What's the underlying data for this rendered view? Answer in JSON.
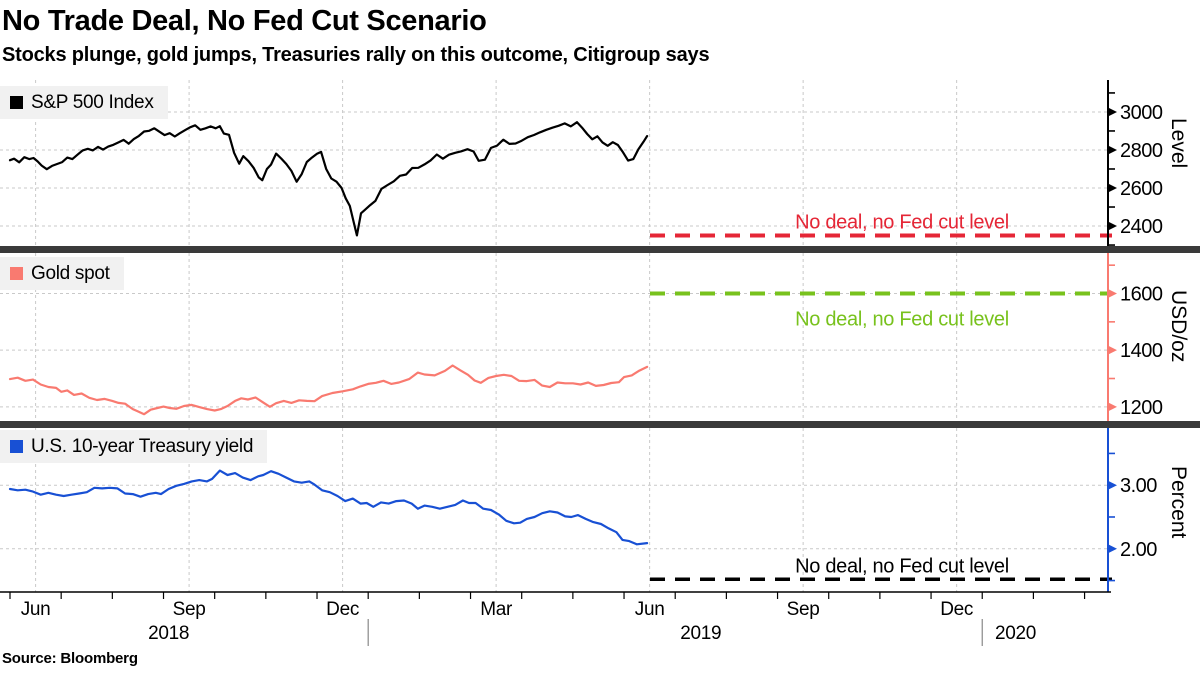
{
  "header": {
    "title": "No Trade Deal, No Fed Cut Scenario",
    "subtitle": "Stocks plunge, gold jumps, Treasuries rally on this outcome, Citigroup says"
  },
  "source": "Source: Bloomberg",
  "colors": {
    "sp500_line": "#000000",
    "gold_line": "#f97a70",
    "treasury_line": "#1850d4",
    "no_deal_sp500": "#e52636",
    "no_deal_gold": "#78c21d",
    "no_deal_treasury": "#000000",
    "gridline": "#c9c9c9",
    "panel_divider": "#3a3a3a",
    "legend_bg": "#f1f1f1"
  },
  "chart_data": [
    {
      "type": "line",
      "panel": "sp500",
      "legend": "S&P 500 Index",
      "line_color": "#000000",
      "axis_color": "#000000",
      "ylabel": "Level",
      "ylim": [
        2295,
        3168
      ],
      "yticks_major": [
        2400,
        2600,
        2800,
        3000
      ],
      "yticks_minor": [
        2300,
        2500,
        2700,
        2900,
        3100
      ],
      "tick_decimals": 0,
      "target_level": {
        "value": 2350,
        "label": "No deal, no Fed cut level",
        "color": "#e52636",
        "label_side": "above"
      },
      "points": [
        [
          0.0,
          2746
        ],
        [
          0.08,
          2754
        ],
        [
          0.18,
          2735
        ],
        [
          0.28,
          2762
        ],
        [
          0.38,
          2752
        ],
        [
          0.46,
          2758
        ],
        [
          0.54,
          2740
        ],
        [
          0.62,
          2718
        ],
        [
          0.72,
          2699
        ],
        [
          0.82,
          2716
        ],
        [
          0.92,
          2726
        ],
        [
          1.02,
          2736
        ],
        [
          1.12,
          2760
        ],
        [
          1.22,
          2752
        ],
        [
          1.32,
          2775
        ],
        [
          1.42,
          2798
        ],
        [
          1.52,
          2806
        ],
        [
          1.62,
          2798
        ],
        [
          1.72,
          2816
        ],
        [
          1.82,
          2802
        ],
        [
          1.92,
          2818
        ],
        [
          2.02,
          2827
        ],
        [
          2.12,
          2840
        ],
        [
          2.22,
          2853
        ],
        [
          2.32,
          2833
        ],
        [
          2.42,
          2857
        ],
        [
          2.52,
          2874
        ],
        [
          2.62,
          2897
        ],
        [
          2.72,
          2901
        ],
        [
          2.82,
          2914
        ],
        [
          2.92,
          2896
        ],
        [
          3.02,
          2878
        ],
        [
          3.12,
          2888
        ],
        [
          3.22,
          2871
        ],
        [
          3.32,
          2888
        ],
        [
          3.42,
          2904
        ],
        [
          3.52,
          2919
        ],
        [
          3.62,
          2930
        ],
        [
          3.72,
          2906
        ],
        [
          3.82,
          2914
        ],
        [
          3.92,
          2924
        ],
        [
          4.02,
          2914
        ],
        [
          4.1,
          2925
        ],
        [
          4.18,
          2886
        ],
        [
          4.28,
          2880
        ],
        [
          4.38,
          2785
        ],
        [
          4.48,
          2728
        ],
        [
          4.56,
          2768
        ],
        [
          4.66,
          2741
        ],
        [
          4.76,
          2706
        ],
        [
          4.86,
          2656
        ],
        [
          4.93,
          2641
        ],
        [
          5.02,
          2700
        ],
        [
          5.1,
          2723
        ],
        [
          5.2,
          2781
        ],
        [
          5.3,
          2755
        ],
        [
          5.4,
          2726
        ],
        [
          5.5,
          2690
        ],
        [
          5.6,
          2633
        ],
        [
          5.7,
          2673
        ],
        [
          5.8,
          2737
        ],
        [
          5.9,
          2760
        ],
        [
          6.0,
          2780
        ],
        [
          6.08,
          2790
        ],
        [
          6.18,
          2700
        ],
        [
          6.28,
          2650
        ],
        [
          6.38,
          2633
        ],
        [
          6.48,
          2600
        ],
        [
          6.56,
          2546
        ],
        [
          6.64,
          2506
        ],
        [
          6.72,
          2416
        ],
        [
          6.78,
          2351
        ],
        [
          6.86,
          2467
        ],
        [
          6.94,
          2486
        ],
        [
          7.04,
          2510
        ],
        [
          7.14,
          2532
        ],
        [
          7.26,
          2596
        ],
        [
          7.38,
          2616
        ],
        [
          7.5,
          2635
        ],
        [
          7.62,
          2664
        ],
        [
          7.74,
          2671
        ],
        [
          7.86,
          2705
        ],
        [
          7.98,
          2706
        ],
        [
          8.1,
          2724
        ],
        [
          8.22,
          2745
        ],
        [
          8.34,
          2776
        ],
        [
          8.46,
          2754
        ],
        [
          8.58,
          2775
        ],
        [
          8.7,
          2785
        ],
        [
          8.82,
          2793
        ],
        [
          8.94,
          2804
        ],
        [
          9.06,
          2792
        ],
        [
          9.16,
          2743
        ],
        [
          9.28,
          2749
        ],
        [
          9.4,
          2811
        ],
        [
          9.52,
          2823
        ],
        [
          9.64,
          2854
        ],
        [
          9.76,
          2832
        ],
        [
          9.88,
          2834
        ],
        [
          10.0,
          2849
        ],
        [
          10.12,
          2867
        ],
        [
          10.24,
          2879
        ],
        [
          10.36,
          2893
        ],
        [
          10.48,
          2906
        ],
        [
          10.6,
          2917
        ],
        [
          10.72,
          2927
        ],
        [
          10.84,
          2940
        ],
        [
          10.96,
          2924
        ],
        [
          11.08,
          2946
        ],
        [
          11.18,
          2917
        ],
        [
          11.28,
          2884
        ],
        [
          11.38,
          2856
        ],
        [
          11.48,
          2872
        ],
        [
          11.58,
          2840
        ],
        [
          11.68,
          2822
        ],
        [
          11.78,
          2841
        ],
        [
          11.88,
          2826
        ],
        [
          11.98,
          2788
        ],
        [
          12.08,
          2744
        ],
        [
          12.18,
          2752
        ],
        [
          12.28,
          2804
        ],
        [
          12.38,
          2843
        ],
        [
          12.45,
          2873
        ]
      ]
    },
    {
      "type": "line",
      "panel": "gold",
      "legend": "Gold spot",
      "line_color": "#f97a70",
      "axis_color": "#f97a70",
      "ylabel": "USD/oz",
      "ylim": [
        1150,
        1743
      ],
      "yticks_major": [
        1200,
        1400,
        1600
      ],
      "yticks_minor": [
        1300,
        1500,
        1700
      ],
      "tick_decimals": 0,
      "target_level": {
        "value": 1600,
        "label": "No deal, no Fed cut level",
        "color": "#78c21d",
        "label_side": "below"
      },
      "points": [
        [
          0.0,
          1298
        ],
        [
          0.15,
          1303
        ],
        [
          0.3,
          1292
        ],
        [
          0.45,
          1296
        ],
        [
          0.6,
          1279
        ],
        [
          0.75,
          1270
        ],
        [
          0.9,
          1267
        ],
        [
          1.0,
          1253
        ],
        [
          1.12,
          1258
        ],
        [
          1.25,
          1242
        ],
        [
          1.4,
          1247
        ],
        [
          1.55,
          1232
        ],
        [
          1.7,
          1224
        ],
        [
          1.85,
          1228
        ],
        [
          2.0,
          1221
        ],
        [
          2.12,
          1214
        ],
        [
          2.25,
          1211
        ],
        [
          2.4,
          1192
        ],
        [
          2.5,
          1184
        ],
        [
          2.62,
          1174
        ],
        [
          2.75,
          1190
        ],
        [
          2.88,
          1196
        ],
        [
          3.0,
          1201
        ],
        [
          3.12,
          1196
        ],
        [
          3.25,
          1193
        ],
        [
          3.4,
          1203
        ],
        [
          3.55,
          1207
        ],
        [
          3.7,
          1199
        ],
        [
          3.85,
          1192
        ],
        [
          4.0,
          1187
        ],
        [
          4.12,
          1192
        ],
        [
          4.25,
          1203
        ],
        [
          4.4,
          1221
        ],
        [
          4.52,
          1230
        ],
        [
          4.65,
          1226
        ],
        [
          4.8,
          1233
        ],
        [
          4.95,
          1215
        ],
        [
          5.08,
          1200
        ],
        [
          5.2,
          1213
        ],
        [
          5.35,
          1221
        ],
        [
          5.5,
          1214
        ],
        [
          5.65,
          1223
        ],
        [
          5.8,
          1221
        ],
        [
          5.95,
          1220
        ],
        [
          6.1,
          1238
        ],
        [
          6.3,
          1249
        ],
        [
          6.5,
          1255
        ],
        [
          6.7,
          1262
        ],
        [
          6.85,
          1272
        ],
        [
          7.0,
          1281
        ],
        [
          7.15,
          1285
        ],
        [
          7.3,
          1292
        ],
        [
          7.45,
          1281
        ],
        [
          7.6,
          1286
        ],
        [
          7.8,
          1298
        ],
        [
          7.97,
          1321
        ],
        [
          8.1,
          1314
        ],
        [
          8.3,
          1311
        ],
        [
          8.5,
          1327
        ],
        [
          8.65,
          1346
        ],
        [
          8.8,
          1329
        ],
        [
          8.95,
          1313
        ],
        [
          9.08,
          1293
        ],
        [
          9.2,
          1285
        ],
        [
          9.35,
          1302
        ],
        [
          9.5,
          1309
        ],
        [
          9.65,
          1313
        ],
        [
          9.8,
          1309
        ],
        [
          9.95,
          1292
        ],
        [
          10.1,
          1291
        ],
        [
          10.25,
          1295
        ],
        [
          10.4,
          1275
        ],
        [
          10.55,
          1270
        ],
        [
          10.7,
          1286
        ],
        [
          10.85,
          1283
        ],
        [
          11.0,
          1283
        ],
        [
          11.15,
          1279
        ],
        [
          11.3,
          1286
        ],
        [
          11.45,
          1274
        ],
        [
          11.6,
          1277
        ],
        [
          11.75,
          1284
        ],
        [
          11.9,
          1287
        ],
        [
          12.0,
          1305
        ],
        [
          12.15,
          1311
        ],
        [
          12.3,
          1328
        ],
        [
          12.45,
          1341
        ]
      ]
    },
    {
      "type": "line",
      "panel": "treasury",
      "legend": "U.S. 10-year Treasury yield",
      "line_color": "#1850d4",
      "axis_color": "#1850d4",
      "ylabel": "Percent",
      "ylim": [
        1.32,
        3.9
      ],
      "yticks_major": [
        2.0,
        3.0
      ],
      "yticks_minor": [
        1.5,
        2.5,
        3.5
      ],
      "tick_decimals": 2,
      "target_level": {
        "value": 1.52,
        "label": "No deal, no Fed cut level",
        "color": "#000000",
        "label_side": "above"
      },
      "points": [
        [
          0.0,
          2.94
        ],
        [
          0.15,
          2.92
        ],
        [
          0.3,
          2.93
        ],
        [
          0.45,
          2.9
        ],
        [
          0.6,
          2.85
        ],
        [
          0.75,
          2.88
        ],
        [
          0.9,
          2.85
        ],
        [
          1.05,
          2.83
        ],
        [
          1.2,
          2.85
        ],
        [
          1.35,
          2.87
        ],
        [
          1.5,
          2.89
        ],
        [
          1.65,
          2.96
        ],
        [
          1.8,
          2.95
        ],
        [
          1.95,
          2.96
        ],
        [
          2.1,
          2.95
        ],
        [
          2.25,
          2.87
        ],
        [
          2.4,
          2.86
        ],
        [
          2.55,
          2.82
        ],
        [
          2.7,
          2.86
        ],
        [
          2.85,
          2.88
        ],
        [
          2.95,
          2.86
        ],
        [
          3.1,
          2.94
        ],
        [
          3.25,
          2.99
        ],
        [
          3.4,
          3.02
        ],
        [
          3.55,
          3.06
        ],
        [
          3.7,
          3.08
        ],
        [
          3.85,
          3.06
        ],
        [
          3.95,
          3.1
        ],
        [
          4.1,
          3.23
        ],
        [
          4.25,
          3.16
        ],
        [
          4.4,
          3.19
        ],
        [
          4.55,
          3.12
        ],
        [
          4.7,
          3.08
        ],
        [
          4.85,
          3.14
        ],
        [
          4.95,
          3.16
        ],
        [
          5.1,
          3.22
        ],
        [
          5.25,
          3.18
        ],
        [
          5.4,
          3.12
        ],
        [
          5.55,
          3.06
        ],
        [
          5.7,
          3.04
        ],
        [
          5.85,
          3.06
        ],
        [
          5.95,
          3.01
        ],
        [
          6.1,
          2.92
        ],
        [
          6.25,
          2.89
        ],
        [
          6.4,
          2.83
        ],
        [
          6.55,
          2.75
        ],
        [
          6.7,
          2.79
        ],
        [
          6.85,
          2.71
        ],
        [
          6.97,
          2.72
        ],
        [
          7.1,
          2.66
        ],
        [
          7.25,
          2.73
        ],
        [
          7.4,
          2.71
        ],
        [
          7.55,
          2.75
        ],
        [
          7.7,
          2.76
        ],
        [
          7.85,
          2.71
        ],
        [
          7.97,
          2.63
        ],
        [
          8.1,
          2.68
        ],
        [
          8.25,
          2.66
        ],
        [
          8.4,
          2.63
        ],
        [
          8.55,
          2.66
        ],
        [
          8.7,
          2.69
        ],
        [
          8.85,
          2.76
        ],
        [
          8.97,
          2.72
        ],
        [
          9.1,
          2.72
        ],
        [
          9.25,
          2.63
        ],
        [
          9.4,
          2.61
        ],
        [
          9.55,
          2.54
        ],
        [
          9.7,
          2.44
        ],
        [
          9.85,
          2.4
        ],
        [
          9.97,
          2.41
        ],
        [
          10.1,
          2.47
        ],
        [
          10.25,
          2.5
        ],
        [
          10.4,
          2.56
        ],
        [
          10.55,
          2.59
        ],
        [
          10.7,
          2.57
        ],
        [
          10.85,
          2.51
        ],
        [
          10.97,
          2.5
        ],
        [
          11.1,
          2.53
        ],
        [
          11.25,
          2.47
        ],
        [
          11.4,
          2.42
        ],
        [
          11.55,
          2.39
        ],
        [
          11.7,
          2.32
        ],
        [
          11.85,
          2.26
        ],
        [
          11.97,
          2.14
        ],
        [
          12.1,
          2.12
        ],
        [
          12.25,
          2.07
        ],
        [
          12.45,
          2.09
        ]
      ]
    }
  ],
  "xaxis": {
    "quarter_labels": [
      {
        "label": "Jun",
        "m": 0.5
      },
      {
        "label": "Sep",
        "m": 3.5
      },
      {
        "label": "Dec",
        "m": 6.5
      },
      {
        "label": "Mar",
        "m": 9.5
      },
      {
        "label": "Jun",
        "m": 12.5
      },
      {
        "label": "Sep",
        "m": 15.5
      },
      {
        "label": "Dec",
        "m": 18.5
      }
    ],
    "year_labels": [
      {
        "label": "2018",
        "m": 3.1
      },
      {
        "label": "2019",
        "m": 13.5
      },
      {
        "label": "2020",
        "m": 19.65
      }
    ],
    "year_divider_m": [
      7,
      19
    ],
    "month_ticks_m": [
      0,
      1,
      2,
      3,
      4,
      5,
      6,
      7,
      8,
      9,
      10,
      11,
      12,
      13,
      14,
      15,
      16,
      17,
      18,
      19,
      20,
      21
    ],
    "gridline_months": [
      0.5,
      3.5,
      6.5,
      9.5,
      12.5,
      15.5,
      18.5
    ]
  }
}
